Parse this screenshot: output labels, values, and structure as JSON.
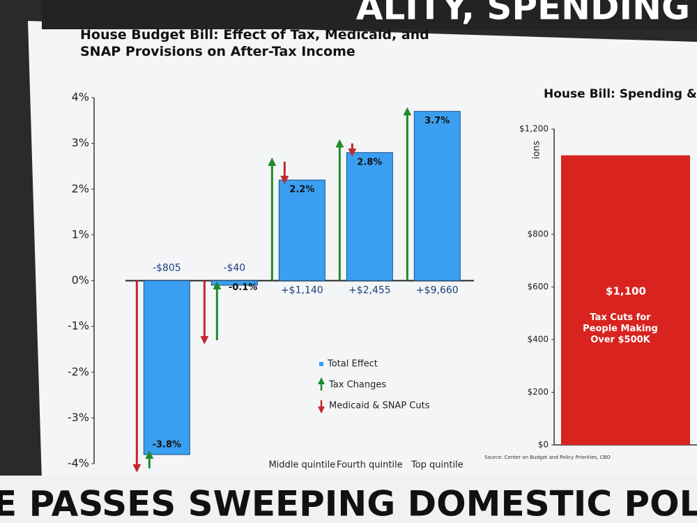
{
  "header": {
    "text": "ALITY, SPENDING"
  },
  "footer": {
    "text": "E PASSES SWEEPING DOMESTIC POLICY BI"
  },
  "chart_data": [
    {
      "type": "bar",
      "title": "House Budget Bill: Effect of Tax, Medicaid, and SNAP Provisions on After-Tax Income",
      "categories": [
        null,
        null,
        "Middle quintile",
        "Fourth quintile",
        "Top quintile"
      ],
      "values": [
        -3.8,
        -0.1,
        2.2,
        2.8,
        3.7
      ],
      "value_labels": [
        "-3.8%",
        "-0.1%",
        "2.2%",
        "2.8%",
        "3.7%"
      ],
      "dollar_labels": [
        "-$805",
        "-$40",
        "+$1,140",
        "+$2,455",
        "+$9,660"
      ],
      "color": "#3a9ff0",
      "legend_label": "Total Effect",
      "series": [
        {
          "name": "Tax Changes",
          "color": "#1f8a2a",
          "values": [
            0.3,
            1.2,
            2.6,
            3.0,
            3.7
          ]
        },
        {
          "name": "Medicaid & SNAP Cuts",
          "color": "#c0282d",
          "values": [
            -4.1,
            -1.3,
            -0.4,
            -0.2,
            0
          ]
        }
      ],
      "ylim": [
        -4,
        4
      ],
      "yticks": [
        {
          "value": 4,
          "label": "4%"
        },
        {
          "value": 3,
          "label": "3%"
        },
        {
          "value": 2,
          "label": "2%"
        },
        {
          "value": 1,
          "label": "1%"
        },
        {
          "value": 0,
          "label": "0%"
        },
        {
          "value": -1,
          "label": "-1%"
        },
        {
          "value": -2,
          "label": "-2%"
        },
        {
          "value": -3,
          "label": "-3%"
        },
        {
          "value": -4,
          "label": "-4%"
        }
      ]
    },
    {
      "type": "bar",
      "title": "House Bill: Spending &",
      "y_label": "ions",
      "categories": [
        "Tax Cuts for People Making Over $500K"
      ],
      "values": [
        1100
      ],
      "value_labels": [
        "$1,100"
      ],
      "color": "#d8231f",
      "ylim": [
        0,
        1200
      ],
      "yticks": [
        {
          "value": 0,
          "label": "$0"
        },
        {
          "value": 200,
          "label": "$200"
        },
        {
          "value": 400,
          "label": "$400"
        },
        {
          "value": 600,
          "label": "$600"
        },
        {
          "value": 800,
          "label": "$800"
        },
        {
          "value": 1200,
          "label": "$1,200"
        }
      ],
      "source": "Source: Center on Budget and Policy Priorities, CBO"
    }
  ]
}
